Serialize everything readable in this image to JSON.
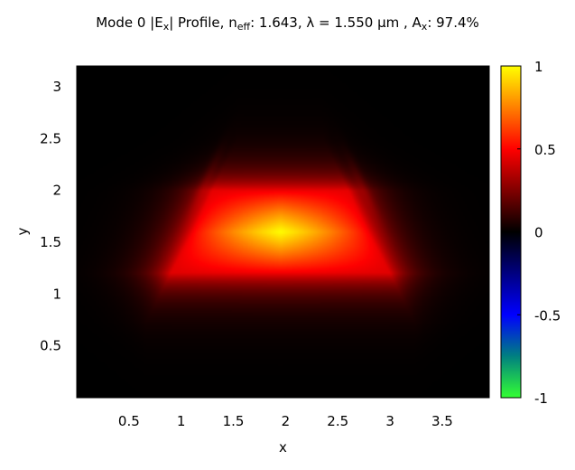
{
  "chart_data": {
    "type": "heatmap",
    "title": {
      "mode": "Mode 0 |E",
      "comp": "x",
      "p1": "| Profile, n",
      "eff": "eff",
      "p2": ": 1.643, λ = 1.550 µm , A",
      "ax": "x",
      "p3": ": 97.4%"
    },
    "xlabel": "x",
    "ylabel": "y",
    "xlim": [
      0.0,
      3.95
    ],
    "ylim": [
      0.0,
      3.2
    ],
    "x_ticks": [
      0.5,
      1,
      1.5,
      2,
      2.5,
      3,
      3.5
    ],
    "x_tick_labels": [
      "0.5",
      "1",
      "1.5",
      "2",
      "2.5",
      "3",
      "3.5"
    ],
    "y_ticks": [
      0.5,
      1,
      1.5,
      2,
      2.5,
      3
    ],
    "y_tick_labels": [
      "0.5",
      "1",
      "1.5",
      "2",
      "2.5",
      "3"
    ],
    "field": {
      "quantity": "|Ex|",
      "peak_x": 1.95,
      "peak_y": 1.6,
      "peak_value": 1.0,
      "core_shape": "trapezoid",
      "core_top_y": 2.0,
      "core_bottom_y": 1.2,
      "core_top_x_range": [
        1.3,
        2.6
      ],
      "core_bottom_x_range": [
        0.9,
        3.0
      ]
    },
    "colorbar": {
      "range": [
        -1,
        1
      ],
      "ticks": [
        1,
        0.5,
        0,
        -0.5,
        -1
      ],
      "tick_labels": [
        "1",
        "0.5",
        "0",
        "-0.5",
        "-1"
      ],
      "colormap": [
        {
          "value": -1.0,
          "color": "#33ff33"
        },
        {
          "value": -0.75,
          "color": "#008080"
        },
        {
          "value": -0.5,
          "color": "#0000ff"
        },
        {
          "value": -0.25,
          "color": "#000080"
        },
        {
          "value": 0.0,
          "color": "#000000"
        },
        {
          "value": 0.25,
          "color": "#800000"
        },
        {
          "value": 0.5,
          "color": "#ff0000"
        },
        {
          "value": 0.75,
          "color": "#ff8000"
        },
        {
          "value": 1.0,
          "color": "#ffff00"
        }
      ]
    }
  }
}
